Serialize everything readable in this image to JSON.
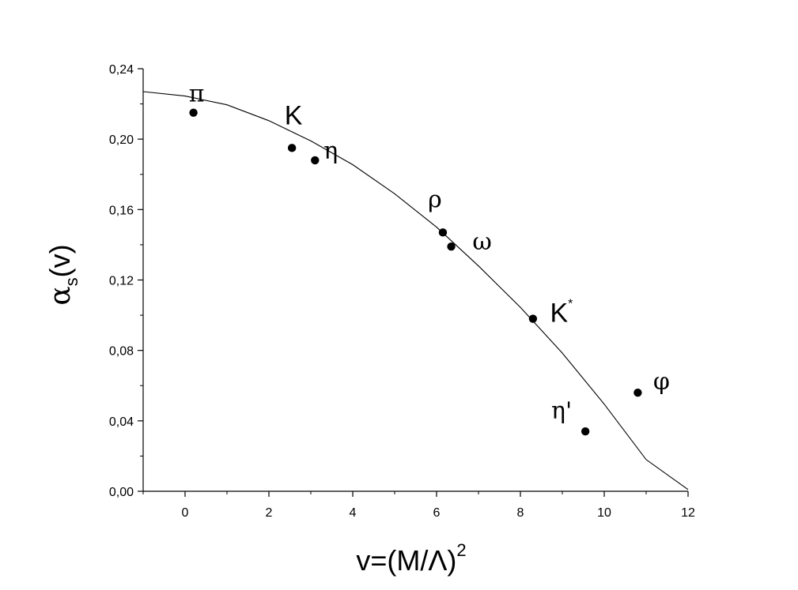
{
  "chart_data": {
    "type": "scatter",
    "title": "",
    "xlabel": {
      "prefix": "v=(M/Λ)",
      "superscript": "2"
    },
    "ylabel": {
      "alpha": "α",
      "subscript": "s",
      "suffix": "(v)"
    },
    "xlim": [
      -1,
      12
    ],
    "ylim": [
      0,
      0.24
    ],
    "x_ticks": [
      0,
      2,
      4,
      6,
      8,
      10,
      12
    ],
    "x_tick_labels": [
      "0",
      "2",
      "4",
      "6",
      "8",
      "10",
      "12"
    ],
    "y_ticks": [
      0,
      0.04,
      0.08,
      0.12,
      0.16,
      0.2,
      0.24
    ],
    "y_tick_labels": [
      "0,00",
      "0,04",
      "0,08",
      "0,12",
      "0,16",
      "0,20",
      "0,24"
    ],
    "grid": false,
    "series": [
      {
        "type": "scatter",
        "points": [
          {
            "x": 0.2,
            "y": 0.215,
            "label": "π"
          },
          {
            "x": 2.55,
            "y": 0.195,
            "label": "K"
          },
          {
            "x": 3.1,
            "y": 0.188,
            "label": "η"
          },
          {
            "x": 6.15,
            "y": 0.147,
            "label": "ρ"
          },
          {
            "x": 6.35,
            "y": 0.139,
            "label": "ω"
          },
          {
            "x": 8.3,
            "y": 0.098,
            "label": "K*"
          },
          {
            "x": 9.55,
            "y": 0.034,
            "label": "η'"
          },
          {
            "x": 10.8,
            "y": 0.056,
            "label": "φ"
          }
        ]
      },
      {
        "type": "line",
        "x": [
          -1,
          0,
          1,
          2,
          3,
          4,
          5,
          6,
          7,
          8,
          9,
          10,
          11,
          12
        ],
        "y": [
          0.227,
          0.2245,
          0.2195,
          0.2105,
          0.199,
          0.1855,
          0.169,
          0.15,
          0.128,
          0.1045,
          0.0785,
          0.0495,
          0.018,
          0.001
        ]
      }
    ]
  }
}
